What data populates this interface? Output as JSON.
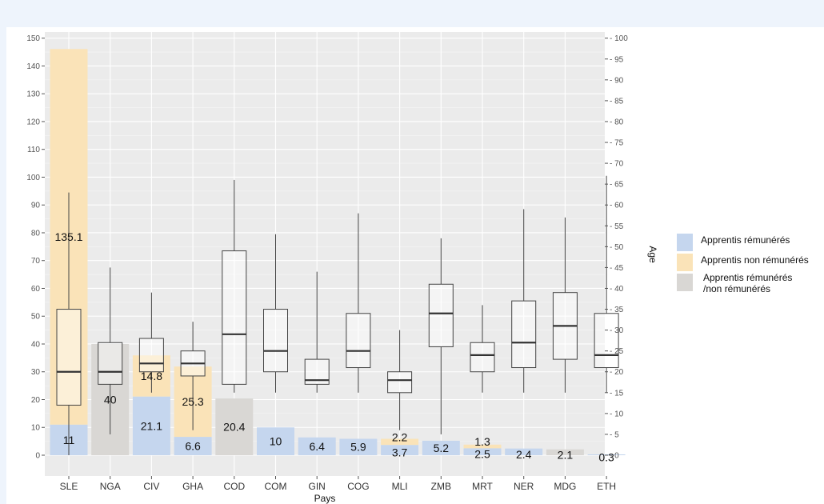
{
  "chart_data": {
    "type": "bar",
    "xlabel": "Pays",
    "ylabel_right": "Age",
    "ylim_left": [
      0,
      150
    ],
    "ylim_right": [
      0,
      100
    ],
    "left_ticks": [
      0,
      10,
      20,
      30,
      40,
      50,
      60,
      70,
      80,
      90,
      100,
      110,
      120,
      130,
      140,
      150
    ],
    "right_ticks": [
      0,
      5,
      10,
      15,
      20,
      25,
      30,
      35,
      40,
      45,
      50,
      55,
      60,
      65,
      70,
      75,
      80,
      85,
      90,
      95,
      100
    ],
    "grid": true,
    "legend_position": "right",
    "categories": [
      "SLE",
      "NGA",
      "CIV",
      "GHA",
      "COD",
      "COM",
      "GIN",
      "COG",
      "MLI",
      "ZMB",
      "MRT",
      "NER",
      "MDG",
      "ETH"
    ],
    "series": [
      {
        "name": "Apprentis rémunérés",
        "color": "#c5d6ee",
        "values": [
          11,
          0,
          21.1,
          6.6,
          0,
          10,
          6.4,
          5.9,
          3.7,
          5.2,
          2.5,
          2.4,
          0,
          0.3
        ],
        "labels": [
          "11",
          "",
          "21.1",
          "6.6",
          "",
          "10",
          "6.4",
          "5.9",
          "3.7",
          "5.2",
          "2.5",
          "2.4",
          "",
          "0.3"
        ]
      },
      {
        "name": "Apprentis non rémunérés",
        "color": "#fae3b8",
        "values": [
          135.1,
          0,
          14.8,
          25.3,
          0,
          0,
          0,
          0,
          2.2,
          0,
          1.3,
          0,
          0,
          0
        ],
        "labels": [
          "135.1",
          "",
          "14.8",
          "25.3",
          "",
          "",
          "",
          "",
          "2.2",
          "",
          "1.3",
          "",
          "",
          ""
        ]
      },
      {
        "name": "Apprentis rémunérés\n/non rémunérés",
        "color": "#d9d7d4",
        "values": [
          0,
          40,
          0,
          0,
          20.4,
          0,
          0,
          0,
          0,
          0,
          0,
          0,
          2.1,
          0
        ],
        "labels": [
          "",
          "40",
          "",
          "",
          "20.4",
          "",
          "",
          "",
          "",
          "",
          "",
          "",
          "2.1",
          ""
        ]
      }
    ],
    "age_boxplots": [
      {
        "category": "SLE",
        "min": 0,
        "q1": 12,
        "median": 20,
        "q3": 35,
        "max": 63
      },
      {
        "category": "NGA",
        "min": 5,
        "q1": 17,
        "median": 20,
        "q3": 27,
        "max": 45
      },
      {
        "category": "CIV",
        "min": 15,
        "q1": 20,
        "median": 22,
        "q3": 28,
        "max": 39
      },
      {
        "category": "GHA",
        "min": 6,
        "q1": 19,
        "median": 22,
        "q3": 25,
        "max": 32
      },
      {
        "category": "COD",
        "min": 15,
        "q1": 17,
        "median": 29,
        "q3": 49,
        "max": 66
      },
      {
        "category": "COM",
        "min": 15,
        "q1": 20,
        "median": 25,
        "q3": 35,
        "max": 53
      },
      {
        "category": "GIN",
        "min": 15,
        "q1": 17,
        "median": 18,
        "q3": 23,
        "max": 44
      },
      {
        "category": "COG",
        "min": 15,
        "q1": 21,
        "median": 25,
        "q3": 34,
        "max": 58
      },
      {
        "category": "MLI",
        "min": 6,
        "q1": 15,
        "median": 18,
        "q3": 20,
        "max": 30
      },
      {
        "category": "ZMB",
        "min": 5,
        "q1": 26,
        "median": 34,
        "q3": 41,
        "max": 52
      },
      {
        "category": "MRT",
        "min": 15,
        "q1": 20,
        "median": 24,
        "q3": 27,
        "max": 36
      },
      {
        "category": "NER",
        "min": 15,
        "q1": 21,
        "median": 27,
        "q3": 37,
        "max": 59
      },
      {
        "category": "MDG",
        "min": 15,
        "q1": 23,
        "median": 31,
        "q3": 39,
        "max": 57
      },
      {
        "category": "ETH",
        "min": 15,
        "q1": 21,
        "median": 24,
        "q3": 34,
        "max": 67
      }
    ]
  }
}
